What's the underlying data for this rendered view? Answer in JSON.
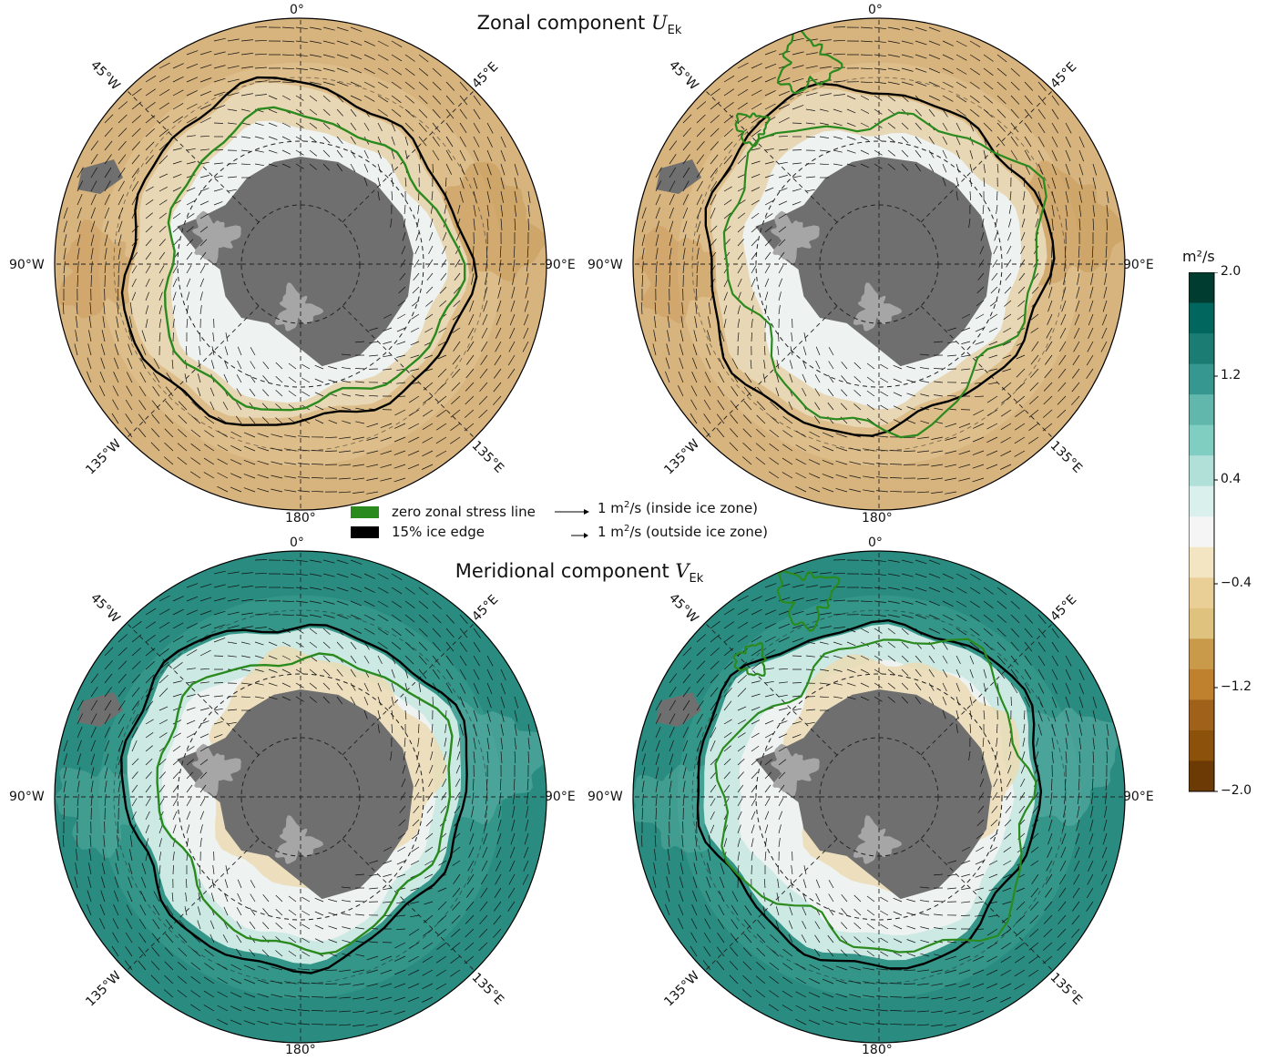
{
  "titles": {
    "top_text": "Zonal component ",
    "top_sym": "U",
    "top_sub": "Ek",
    "bottom_text": "Meridional component ",
    "bottom_sym": "V",
    "bottom_sub": "Ek"
  },
  "lon_labels": {
    "north": "0°",
    "ne": "45°E",
    "nw": "45°W",
    "east": "90°E",
    "west": "90°W",
    "se": "135°E",
    "sw": "135°W",
    "south": "180°"
  },
  "legend": {
    "green_line": "zero zonal stress line",
    "ice_edge": "15% ice edge",
    "arrow_inside_prefix": "1 m",
    "arrow_inside_suffix": "/s (inside ice zone)",
    "arrow_outside_prefix": "1 m",
    "arrow_outside_suffix": "/s (outside ice zone)",
    "superscript": "2",
    "green_color": "#2a8a1e",
    "black_color": "#000000"
  },
  "colorbar": {
    "unit": "m²/s",
    "ticks": [
      "2.0",
      "1.2",
      "0.4",
      "−0.4",
      "−1.2",
      "−2.0"
    ],
    "levels": [
      "#003c30",
      "#01665e",
      "#1a7c72",
      "#35978f",
      "#62b7ac",
      "#80cdc1",
      "#b0e0d8",
      "#d9f0ec",
      "#f5f5f5",
      "#f3e4c2",
      "#e9cf96",
      "#dfc27d",
      "#c99a4a",
      "#bf812d",
      "#a0621a",
      "#8c510a",
      "#6b3a05"
    ],
    "range": [
      -2.0,
      2.0
    ]
  },
  "colors": {
    "land": "#6f6f6f",
    "ice_shelf": "#a6a6a6",
    "zonal_field": "#d7b37e",
    "meridional_field": "#2a8c80",
    "ice_zone_light": "#eef3f2",
    "green_contour": "#2a8a1e"
  },
  "panels": [
    {
      "id": "zonal-left",
      "field": "zonal"
    },
    {
      "id": "zonal-right",
      "field": "zonal"
    },
    {
      "id": "meridional-left",
      "field": "meridional"
    },
    {
      "id": "meridional-right",
      "field": "meridional"
    }
  ]
}
